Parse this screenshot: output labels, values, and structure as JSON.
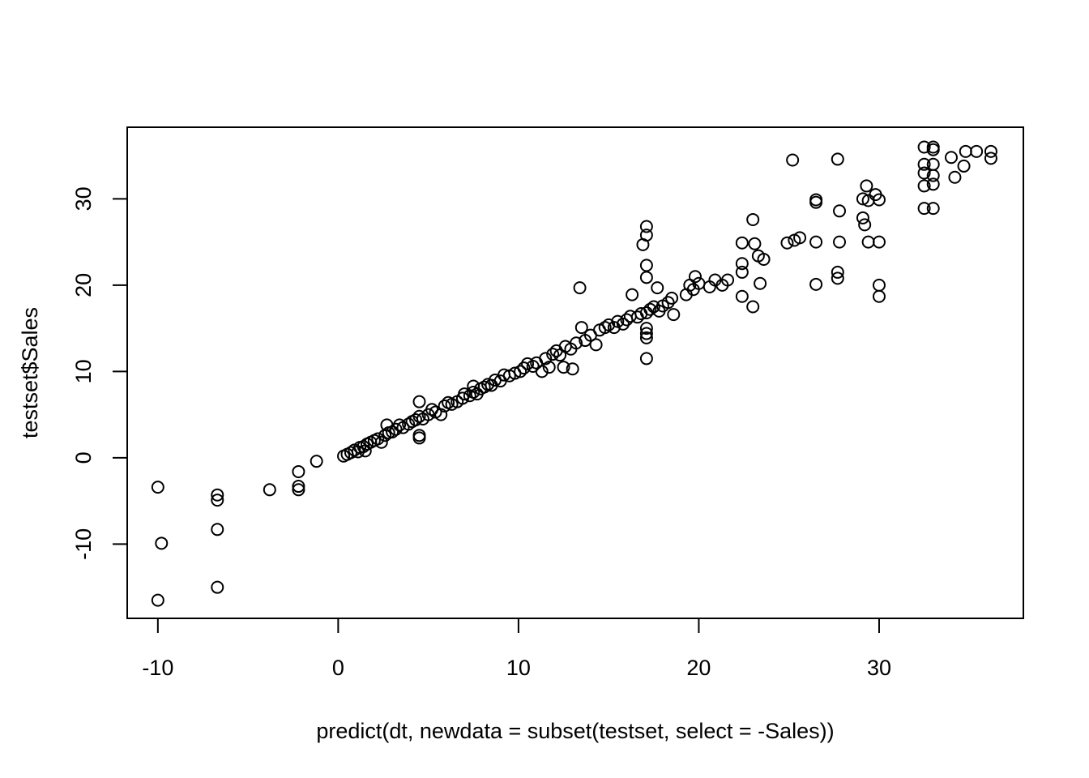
{
  "chart_data": {
    "type": "scatter",
    "xlabel": "predict(dt, newdata = subset(testset, select = -Sales))",
    "ylabel": "testset$Sales",
    "xlim": [
      -11.7,
      38.0
    ],
    "ylim": [
      -18.6,
      38.3
    ],
    "xticks": [
      -10,
      0,
      10,
      20,
      30
    ],
    "yticks": [
      -10,
      0,
      10,
      20,
      30
    ],
    "grid": false,
    "marker": "open-circle",
    "colors": {
      "stroke": "#000000",
      "background": "#ffffff"
    },
    "points": [
      [
        -10.0,
        -3.4
      ],
      [
        -9.8,
        -9.9
      ],
      [
        -10.0,
        -16.5
      ],
      [
        -6.7,
        -4.3
      ],
      [
        -6.7,
        -4.9
      ],
      [
        -6.7,
        -8.3
      ],
      [
        -6.7,
        -15.0
      ],
      [
        -3.8,
        -3.7
      ],
      [
        -2.2,
        -1.6
      ],
      [
        -2.2,
        -3.3
      ],
      [
        -2.2,
        -3.7
      ],
      [
        -1.2,
        -0.4
      ],
      [
        0.3,
        0.2
      ],
      [
        0.5,
        0.4
      ],
      [
        0.7,
        0.6
      ],
      [
        0.9,
        0.9
      ],
      [
        1.1,
        0.7
      ],
      [
        1.2,
        1.2
      ],
      [
        1.4,
        1.3
      ],
      [
        1.5,
        0.8
      ],
      [
        1.6,
        1.6
      ],
      [
        1.8,
        1.8
      ],
      [
        2.0,
        2.0
      ],
      [
        2.2,
        2.2
      ],
      [
        2.4,
        1.8
      ],
      [
        2.6,
        2.6
      ],
      [
        2.8,
        2.9
      ],
      [
        2.7,
        3.8
      ],
      [
        3.0,
        3.0
      ],
      [
        3.2,
        3.3
      ],
      [
        3.4,
        3.8
      ],
      [
        3.6,
        3.5
      ],
      [
        3.9,
        3.9
      ],
      [
        4.1,
        4.2
      ],
      [
        4.3,
        4.4
      ],
      [
        4.5,
        4.8
      ],
      [
        4.5,
        6.5
      ],
      [
        4.5,
        2.3
      ],
      [
        4.5,
        2.6
      ],
      [
        4.7,
        4.5
      ],
      [
        5.0,
        5.0
      ],
      [
        5.2,
        5.6
      ],
      [
        5.4,
        5.3
      ],
      [
        5.7,
        5.0
      ],
      [
        5.9,
        6.0
      ],
      [
        6.1,
        6.4
      ],
      [
        6.3,
        6.2
      ],
      [
        6.6,
        6.5
      ],
      [
        6.9,
        6.9
      ],
      [
        7.0,
        7.4
      ],
      [
        7.3,
        7.2
      ],
      [
        7.5,
        7.6
      ],
      [
        7.5,
        8.3
      ],
      [
        7.7,
        7.4
      ],
      [
        7.9,
        8.0
      ],
      [
        8.1,
        8.2
      ],
      [
        8.3,
        8.5
      ],
      [
        8.5,
        8.4
      ],
      [
        8.7,
        9.0
      ],
      [
        9.0,
        8.9
      ],
      [
        9.2,
        9.6
      ],
      [
        9.5,
        9.5
      ],
      [
        9.8,
        9.8
      ],
      [
        10.1,
        10.0
      ],
      [
        10.3,
        10.4
      ],
      [
        10.5,
        10.9
      ],
      [
        10.8,
        10.6
      ],
      [
        11.0,
        11.0
      ],
      [
        11.3,
        10.0
      ],
      [
        11.5,
        11.5
      ],
      [
        11.7,
        10.5
      ],
      [
        11.9,
        12.0
      ],
      [
        12.1,
        12.4
      ],
      [
        12.3,
        11.9
      ],
      [
        12.5,
        10.5
      ],
      [
        12.6,
        12.9
      ],
      [
        12.9,
        12.6
      ],
      [
        13.0,
        10.3
      ],
      [
        13.2,
        13.3
      ],
      [
        13.4,
        19.7
      ],
      [
        13.5,
        15.1
      ],
      [
        13.7,
        13.6
      ],
      [
        14.0,
        14.2
      ],
      [
        14.3,
        13.1
      ],
      [
        14.5,
        14.8
      ],
      [
        14.8,
        15.1
      ],
      [
        15.0,
        15.4
      ],
      [
        15.3,
        15.1
      ],
      [
        15.5,
        15.8
      ],
      [
        15.8,
        15.5
      ],
      [
        16.0,
        16.0
      ],
      [
        16.2,
        16.4
      ],
      [
        16.3,
        18.9
      ],
      [
        16.6,
        16.3
      ],
      [
        16.8,
        16.7
      ],
      [
        16.9,
        24.7
      ],
      [
        17.1,
        26.8
      ],
      [
        17.1,
        25.8
      ],
      [
        17.1,
        22.3
      ],
      [
        17.1,
        20.9
      ],
      [
        17.1,
        16.8
      ],
      [
        17.1,
        15.0
      ],
      [
        17.1,
        14.4
      ],
      [
        17.1,
        13.9
      ],
      [
        17.1,
        11.5
      ],
      [
        17.3,
        17.2
      ],
      [
        17.5,
        17.5
      ],
      [
        17.7,
        19.7
      ],
      [
        17.8,
        17.0
      ],
      [
        18.0,
        17.6
      ],
      [
        18.3,
        18.0
      ],
      [
        18.5,
        18.5
      ],
      [
        18.6,
        16.6
      ],
      [
        19.3,
        18.9
      ],
      [
        19.5,
        20.0
      ],
      [
        19.7,
        19.5
      ],
      [
        19.8,
        21.0
      ],
      [
        20.0,
        20.2
      ],
      [
        20.6,
        19.8
      ],
      [
        20.9,
        20.6
      ],
      [
        21.3,
        20.0
      ],
      [
        21.6,
        20.6
      ],
      [
        22.4,
        24.9
      ],
      [
        22.4,
        22.5
      ],
      [
        22.4,
        21.5
      ],
      [
        22.4,
        18.7
      ],
      [
        23.0,
        27.6
      ],
      [
        23.1,
        24.8
      ],
      [
        23.0,
        17.5
      ],
      [
        23.3,
        23.4
      ],
      [
        23.4,
        20.2
      ],
      [
        23.6,
        23.0
      ],
      [
        24.9,
        24.9
      ],
      [
        25.2,
        34.5
      ],
      [
        25.3,
        25.2
      ],
      [
        25.6,
        25.5
      ],
      [
        26.5,
        29.9
      ],
      [
        26.5,
        29.6
      ],
      [
        26.5,
        25.0
      ],
      [
        26.5,
        20.1
      ],
      [
        27.7,
        34.6
      ],
      [
        27.8,
        28.6
      ],
      [
        27.8,
        25.0
      ],
      [
        27.7,
        21.5
      ],
      [
        27.7,
        20.8
      ],
      [
        29.1,
        30.0
      ],
      [
        29.1,
        27.8
      ],
      [
        29.2,
        27.0
      ],
      [
        29.3,
        31.5
      ],
      [
        29.4,
        29.8
      ],
      [
        29.4,
        25.0
      ],
      [
        29.8,
        30.5
      ],
      [
        30.0,
        29.9
      ],
      [
        30.0,
        25.0
      ],
      [
        30.0,
        20.0
      ],
      [
        30.0,
        18.7
      ],
      [
        32.5,
        36.0
      ],
      [
        32.5,
        34.0
      ],
      [
        32.5,
        33.0
      ],
      [
        32.5,
        31.5
      ],
      [
        32.5,
        28.9
      ],
      [
        33.0,
        36.0
      ],
      [
        33.0,
        35.7
      ],
      [
        33.0,
        34.0
      ],
      [
        33.0,
        32.7
      ],
      [
        33.0,
        31.7
      ],
      [
        33.0,
        28.9
      ],
      [
        34.0,
        34.8
      ],
      [
        34.2,
        32.5
      ],
      [
        34.8,
        35.5
      ],
      [
        34.7,
        33.8
      ],
      [
        35.4,
        35.5
      ],
      [
        36.2,
        35.5
      ],
      [
        36.2,
        34.7
      ]
    ]
  }
}
